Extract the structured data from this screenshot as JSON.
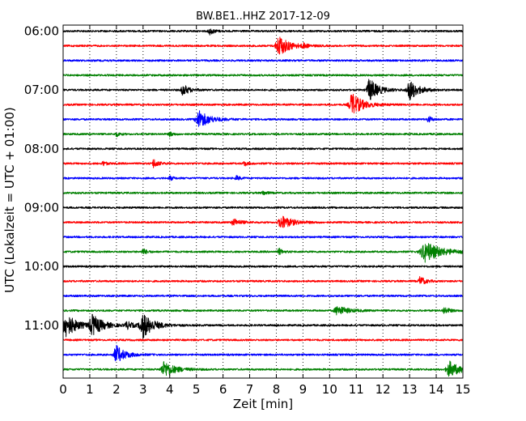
{
  "chart_data": {
    "type": "line",
    "title": "BW.BE1..HHZ 2017-12-09",
    "xlabel": "Zeit  [min]",
    "ylabel": "UTC (Lokalzeit = UTC + 01:00)",
    "xlim": [
      0,
      15
    ],
    "xticks": [
      0,
      1,
      2,
      3,
      4,
      5,
      6,
      7,
      8,
      9,
      10,
      11,
      12,
      13,
      14,
      15
    ],
    "xtick_labels": [
      "0",
      "1",
      "2",
      "3",
      "4",
      "5",
      "6",
      "7",
      "8",
      "9",
      "10",
      "11",
      "12",
      "13",
      "14",
      "15"
    ],
    "yticks": [
      "06:00",
      "07:00",
      "08:00",
      "09:00",
      "10:00",
      "11:00"
    ],
    "row_interval_min": 15,
    "grid": "vertical-dotted",
    "series_colors": [
      "#000000",
      "#ff0000",
      "#0000ff",
      "#008000"
    ],
    "traces": [
      {
        "start": "06:00",
        "events": [
          [
            5.5,
            0.25,
            0.3
          ]
        ]
      },
      {
        "start": "06:15",
        "events": [
          [
            8.1,
            0.6,
            0.9
          ],
          [
            9.0,
            0.2,
            0.2
          ]
        ]
      },
      {
        "start": "06:30",
        "events": []
      },
      {
        "start": "06:45",
        "events": []
      },
      {
        "start": "07:00",
        "events": [
          [
            4.5,
            0.35,
            0.5
          ],
          [
            11.5,
            0.5,
            1.0
          ],
          [
            13.0,
            0.5,
            0.9
          ]
        ]
      },
      {
        "start": "07:15",
        "events": [
          [
            10.85,
            0.6,
            1.0
          ]
        ]
      },
      {
        "start": "07:30",
        "events": [
          [
            5.1,
            0.6,
            0.8
          ],
          [
            13.7,
            0.2,
            0.3
          ]
        ]
      },
      {
        "start": "07:45",
        "events": [
          [
            2.0,
            0.2,
            0.2
          ],
          [
            4.0,
            0.2,
            0.2
          ]
        ]
      },
      {
        "start": "08:00",
        "events": []
      },
      {
        "start": "08:15",
        "events": [
          [
            1.5,
            0.2,
            0.2
          ],
          [
            3.4,
            0.25,
            0.4
          ],
          [
            6.8,
            0.2,
            0.2
          ]
        ]
      },
      {
        "start": "08:30",
        "events": [
          [
            4.0,
            0.2,
            0.2
          ],
          [
            6.5,
            0.2,
            0.2
          ]
        ]
      },
      {
        "start": "08:45",
        "events": [
          [
            7.5,
            0.2,
            0.2
          ]
        ]
      },
      {
        "start": "09:00",
        "events": []
      },
      {
        "start": "09:15",
        "events": [
          [
            6.4,
            0.4,
            0.3
          ],
          [
            8.2,
            0.6,
            0.6
          ]
        ]
      },
      {
        "start": "09:30",
        "events": []
      },
      {
        "start": "09:45",
        "events": [
          [
            3.0,
            0.2,
            0.3
          ],
          [
            8.1,
            0.2,
            0.3
          ],
          [
            13.6,
            0.9,
            0.9
          ]
        ]
      },
      {
        "start": "10:00",
        "events": []
      },
      {
        "start": "10:15",
        "events": [
          [
            13.4,
            0.3,
            0.4
          ]
        ]
      },
      {
        "start": "10:30",
        "events": []
      },
      {
        "start": "10:45",
        "events": [
          [
            10.3,
            0.6,
            0.4
          ],
          [
            14.3,
            0.3,
            0.3
          ]
        ]
      },
      {
        "start": "11:00",
        "events": [
          [
            0.1,
            0.6,
            1.1
          ],
          [
            1.1,
            0.6,
            0.9
          ],
          [
            2.4,
            0.4,
            0.3
          ],
          [
            3.0,
            0.6,
            1.1
          ]
        ]
      },
      {
        "start": "11:15",
        "events": []
      },
      {
        "start": "11:30",
        "events": [
          [
            2.0,
            0.5,
            0.8
          ]
        ]
      },
      {
        "start": "11:45",
        "events": [
          [
            3.8,
            0.6,
            0.7
          ],
          [
            14.5,
            0.6,
            0.7
          ]
        ]
      }
    ]
  }
}
